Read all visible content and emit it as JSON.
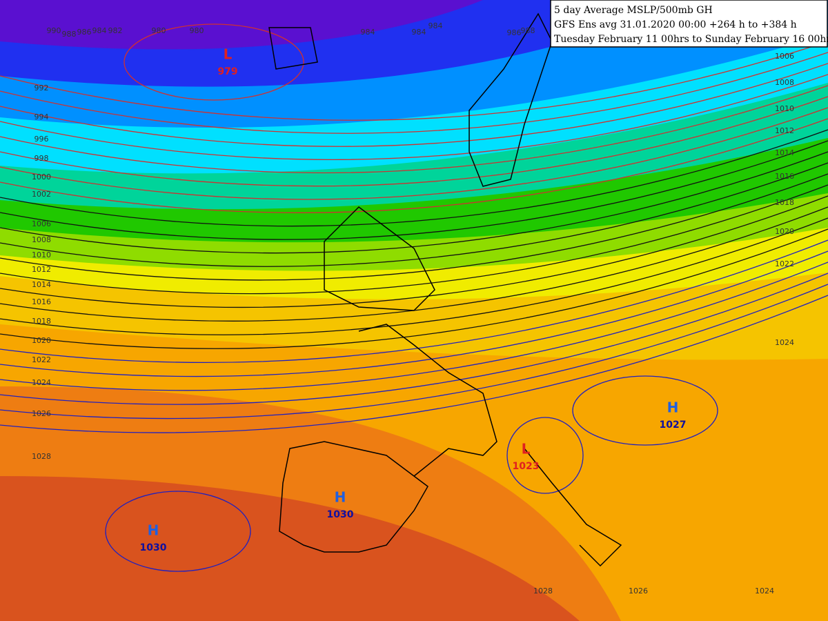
{
  "header": {
    "lines": [
      "5 day Average MSLP/500mb GH",
      "GFS Ens avg 31.01.2020 00:00 +264 h to +384 h",
      "Tuesday February 11 00hrs to Sunday February 16 00hrs"
    ]
  },
  "isobar_labels": [
    "990",
    "988",
    "986",
    "984",
    "982",
    "980",
    "980",
    "984",
    "984",
    "984",
    "986",
    "988",
    "992",
    "994",
    "996",
    "998",
    "1000",
    "1002",
    "1006",
    "1008",
    "1010",
    "1012",
    "1014",
    "1016",
    "1018",
    "1020",
    "1022",
    "1024",
    "1026",
    "1028",
    "1006",
    "1008",
    "1010",
    "1012",
    "1014",
    "1016",
    "1018",
    "1020",
    "1022",
    "1024",
    "1028",
    "1026",
    "1024"
  ],
  "centers": [
    {
      "letter": "L",
      "value": "979"
    },
    {
      "letter": "H",
      "value": "1030"
    },
    {
      "letter": "H",
      "value": "1030"
    },
    {
      "letter": "L",
      "value": "1023"
    },
    {
      "letter": "H",
      "value": "1027"
    }
  ]
}
